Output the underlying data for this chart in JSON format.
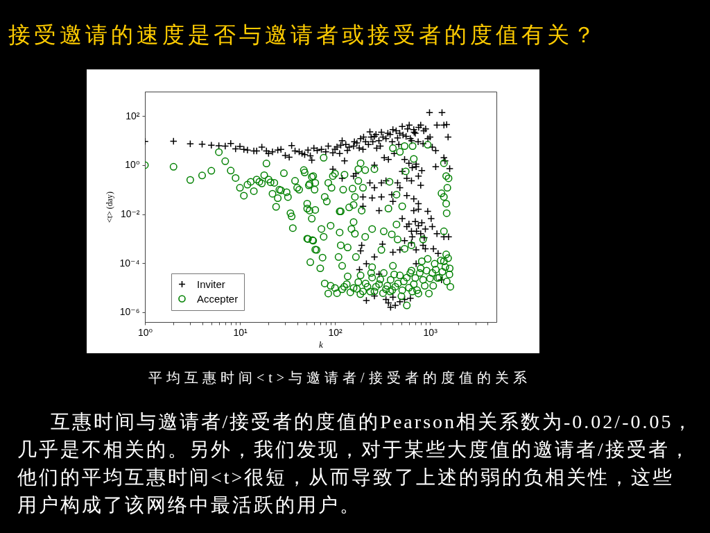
{
  "chart_data": {
    "type": "scatter",
    "title": "接受邀请的速度是否与邀请者或接受者的度值有关？",
    "xlabel": "k",
    "ylabel": "<t> (day)",
    "log": "xy",
    "legend": "bottom left",
    "xlim": [
      1,
      5000
    ],
    "xticks": [
      {
        "value": 1,
        "label": "10⁰"
      },
      {
        "value": 2,
        "label": null
      },
      {
        "value": 3,
        "label": null
      },
      {
        "value": 4,
        "label": null
      },
      {
        "value": 5,
        "label": null
      },
      {
        "value": 6,
        "label": null
      },
      {
        "value": 7,
        "label": null
      },
      {
        "value": 8,
        "label": null
      },
      {
        "value": 9,
        "label": null
      },
      {
        "value": 10,
        "label": "10¹"
      },
      {
        "value": 20,
        "label": null
      },
      {
        "value": 30,
        "label": null
      },
      {
        "value": 40,
        "label": null
      },
      {
        "value": 50,
        "label": null
      },
      {
        "value": 60,
        "label": null
      },
      {
        "value": 70,
        "label": null
      },
      {
        "value": 80,
        "label": null
      },
      {
        "value": 90,
        "label": null
      },
      {
        "value": 100,
        "label": "10²"
      },
      {
        "value": 200,
        "label": null
      },
      {
        "value": 300,
        "label": null
      },
      {
        "value": 400,
        "label": null
      },
      {
        "value": 500,
        "label": null
      },
      {
        "value": 600,
        "label": null
      },
      {
        "value": 700,
        "label": null
      },
      {
        "value": 800,
        "label": null
      },
      {
        "value": 900,
        "label": null
      },
      {
        "value": 1000,
        "label": "10³"
      },
      {
        "value": 2000,
        "label": null
      },
      {
        "value": 3000,
        "label": null
      },
      {
        "value": 4000,
        "label": null
      }
    ],
    "ylim": [
      4e-07,
      1000
    ],
    "yticks": [
      {
        "value": 1e-06,
        "label": "10⁻⁶"
      },
      {
        "value": 0.0001,
        "label": "10⁻⁴"
      },
      {
        "value": 0.01,
        "label": "10⁻²"
      },
      {
        "value": 1,
        "label": "10⁰"
      },
      {
        "value": 100,
        "label": "10²"
      }
    ],
    "series": [
      {
        "name": "Inviter",
        "color": "#000000",
        "marker": "cross",
        "x": [
          1,
          2,
          3,
          4,
          5,
          6,
          7,
          8,
          9,
          10,
          11,
          12,
          14,
          15,
          17,
          19,
          20,
          22,
          25,
          27,
          30,
          33,
          35,
          38,
          42,
          48,
          52,
          57,
          60,
          72,
          85,
          95,
          105,
          112,
          119,
          126,
          130,
          141,
          157,
          170,
          186,
          197,
          210,
          233,
          240,
          260,
          275,
          290,
          308,
          344,
          365,
          380,
          407,
          456,
          480,
          510,
          540,
          560,
          604,
          640,
          675,
          700,
          714,
          798,
          845,
          900,
          988,
          1000,
          1057,
          1148,
          1183,
          1337,
          1400,
          1497,
          1400,
          1549,
          1611,
          1148,
          1440,
          600,
          650,
          820,
          510,
          570,
          638,
          714,
          755,
          798,
          755,
          675,
          570,
          482,
          456,
          344,
          308,
          260,
          233,
          197,
          197,
          246,
          308,
          166,
          157,
          119,
          95,
          396,
          407,
          291,
          675,
          755,
          946,
          1028,
          510,
          570,
          638,
          755,
          798,
          893,
          1057,
          1183,
          1400,
          1567,
          540,
          638,
          714,
          845,
          893,
          1086,
          1216,
          191,
          186,
          214,
          260,
          316,
          407,
          482,
          181,
          291,
          714,
          1321,
          214,
          260,
          344,
          365,
          385,
          431,
          407,
          482,
          621,
          540,
          45,
          55,
          65,
          80,
          100,
          115,
          135,
          160,
          180,
          200,
          225,
          250,
          270,
          300,
          320,
          360,
          400,
          440,
          470,
          520,
          580,
          620,
          680,
          750,
          760,
          860,
          950,
          260,
          330,
          420,
          600,
          650,
          700,
          720,
          820,
          870
        ],
        "values": [
          9.3,
          9.5,
          7.4,
          7.2,
          6.5,
          6.2,
          6.0,
          7.6,
          4.6,
          5.8,
          4.4,
          4.1,
          3.8,
          3.8,
          5.4,
          3.8,
          3.0,
          3.5,
          4.1,
          4.4,
          2.5,
          2.1,
          6.3,
          3.8,
          3.5,
          2.7,
          4.1,
          1.6,
          4.9,
          4.4,
          6.0,
          3.2,
          5.5,
          3.0,
          10,
          1.5,
          7,
          5.4,
          6.0,
          8,
          12,
          4.4,
          9,
          23,
          14,
          15,
          4.9,
          10,
          22,
          12,
          1.7,
          18,
          28,
          13,
          20,
          38,
          1.7,
          15,
          43,
          10,
          28,
          20,
          1.1,
          43,
          7.5,
          30,
          140,
          14,
          5.4,
          3.9,
          43,
          140,
          43,
          45,
          2.0,
          14,
          0.72,
          0.86,
          1.5,
          1.2,
          0.8,
          0.6,
          0.56,
          0.29,
          0.23,
          0.86,
          0.36,
          0.15,
          0.027,
          0.042,
          0.058,
          0.12,
          0.19,
          0.23,
          0.19,
          0.12,
          0.19,
          0.051,
          0.021,
          0.046,
          0.051,
          0.45,
          0.36,
          0.29,
          0.69,
          0.063,
          0.033,
          0.014,
          0.014,
          0.016,
          0.013,
          0.0066,
          0.0066,
          0.0031,
          0.002,
          0.0034,
          0.0016,
          0.0025,
          0.0031,
          0.0016,
          0.0012,
          0.0012,
          0.00083,
          0.00067,
          0.00035,
          0.00054,
          0.00039,
          0.00039,
          0.00025,
          0.00054,
          0.00032,
          9.5e-05,
          0.00018,
          0.0006,
          0.00028,
          0.00035,
          5.5e-05,
          3.6e-05,
          9.5e-05,
          2.1e-05,
          3e-06,
          4.6e-06,
          3.3e-06,
          2.4e-06,
          1.6e-06,
          1.9e-06,
          4.1e-06,
          2.7e-06,
          3.7e-06,
          3.3e-06,
          3.0,
          2.4,
          4.0,
          3.5,
          4.5,
          6.5,
          4.0,
          9.0,
          5.0,
          14,
          7,
          9,
          18,
          6,
          14,
          20,
          9,
          25,
          7,
          17,
          30,
          12,
          22,
          9,
          35,
          25,
          12,
          1.0,
          2.0,
          3.0,
          0.004,
          0.0012,
          0.005,
          0.002,
          0.0045,
          0.0011
        ]
      },
      {
        "name": "Accepter",
        "color": "#008000",
        "marker": "circle",
        "x": [
          1,
          2,
          3,
          4,
          5,
          6,
          7,
          8,
          9,
          10,
          11,
          12,
          13,
          14,
          15,
          16,
          17,
          18,
          19,
          20,
          21,
          22,
          23,
          24,
          25,
          26,
          27,
          29,
          31,
          32,
          34,
          35,
          36,
          38,
          40,
          42,
          47,
          48,
          51,
          53,
          54,
          57,
          59,
          61,
          62,
          52,
          58,
          62,
          55,
          57,
          76,
          85,
          95,
          100,
          92,
          122,
          126,
          153,
          162,
          176,
          186,
          208,
          260,
          176,
          197,
          78,
          82,
          51,
          62,
          115,
          141,
          157,
          365,
          375,
          407,
          444,
          510,
          482,
          540,
          656,
          555,
          675,
          946,
          1400,
          1480,
          1567,
          1521,
          1321,
          1400,
          1480,
          1497,
          54,
          112,
          191,
          51,
          59,
          72,
          76,
          64,
          74,
          70,
          90,
          112,
          115,
          109,
          136,
          149,
          162,
          157,
          208,
          246,
          326,
          396,
          444,
          456,
          540,
          638,
          845,
          1400,
          119,
          136,
          166,
          186,
          246,
          308,
          78,
          85,
          100,
          119,
          133,
          157,
          176,
          197,
          220,
          246,
          260,
          291,
          326,
          344,
          385,
          407,
          431,
          482,
          510,
          570,
          570,
          638,
          675,
          755,
          798,
          845,
          973,
          946,
          1057,
          1119,
          1250,
          1400,
          1480,
          1611,
          1637,
          90,
          105,
          125,
          145,
          170,
          185,
          210,
          235,
          270,
          300,
          320,
          355,
          400,
          420,
          460,
          500,
          530,
          600,
          620,
          700,
          730,
          780,
          880,
          920,
          1000,
          1080,
          1150,
          1200,
          1300,
          1350,
          1450,
          1550,
          1600,
          1500,
          240,
          380,
          650,
          820
        ],
        "values": [
          1.0,
          0.86,
          0.25,
          0.38,
          0.59,
          3.4,
          1.45,
          0.6,
          0.3,
          0.12,
          0.057,
          0.16,
          0.21,
          0.087,
          0.26,
          0.21,
          0.18,
          0.39,
          1.17,
          0.26,
          0.2,
          0.068,
          0.19,
          0.02,
          0.045,
          0.1,
          0.094,
          0.47,
          0.079,
          0.05,
          0.011,
          0.0081,
          0.0027,
          0.23,
          0.12,
          0.1,
          0.63,
          0.5,
          0.027,
          0.15,
          0.17,
          0.33,
          0.36,
          0.1,
          0.19,
          0.00098,
          0.00087,
          0.00036,
          0.00011,
          0.0066,
          2.0,
          0.19,
          0.36,
          0.45,
          0.12,
          0.1,
          0.41,
          0.11,
          0.051,
          0.69,
          1.2,
          0.63,
          0.69,
          0.23,
          0.12,
          0.051,
          0.033,
          0.017,
          0.015,
          0.013,
          0.019,
          0.024,
          0.017,
          0.21,
          4.9,
          0.063,
          0.021,
          3.5,
          6.0,
          6.0,
          0.56,
          1.8,
          6.8,
          1.2,
          0.36,
          0.29,
          0.12,
          0.071,
          0.051,
          0.027,
          0.011,
          0.014,
          0.013,
          0.014,
          0.001,
          0.00083,
          0.0025,
          0.0012,
          0.00035,
          0.00017,
          6.2e-05,
          0.0034,
          0.0018,
          0.00054,
          0.00018,
          0.00044,
          0.0025,
          0.0016,
          0.0048,
          0.0012,
          0.0025,
          0.002,
          0.0015,
          0.0038,
          0.00093,
          0.00039,
          0.00054,
          0.00093,
          0.002,
          7.8e-05,
          2.9e-05,
          0.00018,
          3.2e-05,
          6.9e-05,
          0.00035,
          1.5e-05,
          5.8e-06,
          9.8e-06,
          8.7e-06,
          1.4e-05,
          9.8e-06,
          1.7e-05,
          7.1e-06,
          1.1e-05,
          2.6e-05,
          7.1e-06,
          1.4e-05,
          4e-05,
          8.7e-06,
          2.1e-05,
          7.8e-05,
          1.1e-05,
          3.2e-05,
          7.9e-06,
          2.6e-05,
          1.9e-06,
          5e-05,
          1.4e-05,
          5.8e-06,
          6.2e-05,
          2.1e-05,
          5.8e-06,
          0.00015,
          4e-05,
          9.5e-05,
          2.6e-05,
          0.00012,
          0.00023,
          6.2e-05,
          1.1e-05,
          1.2e-05,
          6e-06,
          1.1e-05,
          6.5e-06,
          9e-06,
          5.5e-06,
          1.5e-05,
          7e-06,
          1.1e-05,
          2.2e-05,
          6e-06,
          1.2e-05,
          8e-06,
          3.5e-05,
          1.5e-05,
          4.5e-06,
          1.8e-05,
          1e-05,
          4e-05,
          2.5e-05,
          8e-06,
          4e-05,
          1.2e-05,
          5e-05,
          2.4e-05,
          1.2e-05,
          5.5e-05,
          2.5e-05,
          0.00013,
          4.5e-05,
          7e-05,
          0.00016,
          3.5e-05,
          1.8e-05,
          4e-05,
          7e-06,
          7e-06,
          0.00012
        ]
      }
    ],
    "annotations": [
      "平均互惠时间<t>与邀请者/接受者的度值的关系",
      "互惠时间与邀请者/接受者的度值的Pearson相关系数为-0.02/-0.05，几乎是不相关的。另外，我们发现，对于某些大度值的邀请者/接受者，他们的平均互惠时间<t>很短，从而导致了上述的弱的负相关性，这些用户构成了该网络中最活跃的用户。"
    ]
  }
}
